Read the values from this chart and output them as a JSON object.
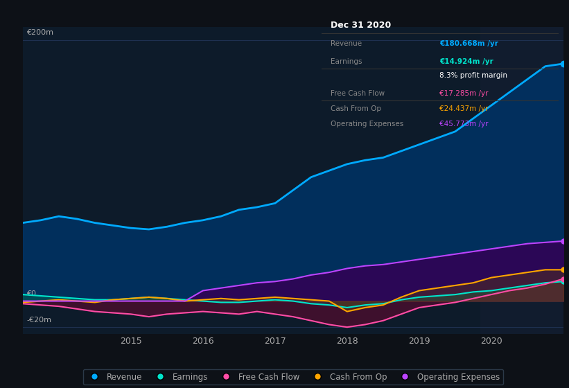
{
  "bg_color": "#0d1117",
  "plot_bg_color": "#0d1b2a",
  "highlight_bg": "#111c2e",
  "grid_color": "#1e3050",
  "text_color": "#aaaaaa",
  "title_color": "#ffffff",
  "ylabel_200": "€200m",
  "ylabel_0": "€0",
  "ylabel_neg20": "-€20m",
  "x_ticks": [
    2015,
    2016,
    2017,
    2018,
    2019,
    2020
  ],
  "legend": [
    {
      "label": "Revenue",
      "color": "#00aaff"
    },
    {
      "label": "Earnings",
      "color": "#00e5cc"
    },
    {
      "label": "Free Cash Flow",
      "color": "#ff4da6"
    },
    {
      "label": "Cash From Op",
      "color": "#ffa500"
    },
    {
      "label": "Operating Expenses",
      "color": "#bb44ff"
    }
  ],
  "info_box": {
    "title": "Dec 31 2020",
    "rows": [
      {
        "label": "Revenue",
        "value": "€180.668m /yr",
        "value_color": "#00aaff"
      },
      {
        "label": "Earnings",
        "value": "€14.924m /yr",
        "value_color": "#00e5cc"
      },
      {
        "label": "",
        "value": "8.3% profit margin",
        "value_color": "#ffffff"
      },
      {
        "label": "Free Cash Flow",
        "value": "€17.285m /yr",
        "value_color": "#ff4da6"
      },
      {
        "label": "Cash From Op",
        "value": "€24.437m /yr",
        "value_color": "#ffa500"
      },
      {
        "label": "Operating Expenses",
        "value": "€45.773m /yr",
        "value_color": "#bb44ff"
      }
    ]
  },
  "revenue": {
    "x": [
      2013.5,
      2013.75,
      2014.0,
      2014.25,
      2014.5,
      2014.75,
      2015.0,
      2015.25,
      2015.5,
      2015.75,
      2016.0,
      2016.25,
      2016.5,
      2016.75,
      2017.0,
      2017.25,
      2017.5,
      2017.75,
      2018.0,
      2018.25,
      2018.5,
      2018.75,
      2019.0,
      2019.25,
      2019.5,
      2019.75,
      2020.0,
      2020.25,
      2020.5,
      2020.75,
      2021.0
    ],
    "y": [
      60,
      62,
      65,
      63,
      60,
      58,
      56,
      55,
      57,
      60,
      62,
      65,
      70,
      72,
      75,
      85,
      95,
      100,
      105,
      108,
      110,
      115,
      120,
      125,
      130,
      140,
      150,
      160,
      170,
      180,
      182
    ],
    "color": "#00aaff",
    "fill_color": "#003366",
    "lw": 2.0
  },
  "earnings": {
    "x": [
      2013.5,
      2013.75,
      2014.0,
      2014.25,
      2014.5,
      2014.75,
      2015.0,
      2015.25,
      2015.5,
      2015.75,
      2016.0,
      2016.25,
      2016.5,
      2016.75,
      2017.0,
      2017.25,
      2017.5,
      2017.75,
      2018.0,
      2018.25,
      2018.5,
      2018.75,
      2019.0,
      2019.25,
      2019.5,
      2019.75,
      2020.0,
      2020.25,
      2020.5,
      2020.75,
      2021.0
    ],
    "y": [
      5,
      4,
      3,
      2,
      1,
      1,
      2,
      3,
      2,
      1,
      0,
      -1,
      -1,
      0,
      1,
      0,
      -2,
      -3,
      -5,
      -3,
      -2,
      1,
      3,
      4,
      5,
      7,
      8,
      10,
      12,
      14,
      15
    ],
    "color": "#00e5cc",
    "lw": 1.5
  },
  "free_cash_flow": {
    "x": [
      2013.5,
      2013.75,
      2014.0,
      2014.25,
      2014.5,
      2014.75,
      2015.0,
      2015.25,
      2015.5,
      2015.75,
      2016.0,
      2016.25,
      2016.5,
      2016.75,
      2017.0,
      2017.25,
      2017.5,
      2017.75,
      2018.0,
      2018.25,
      2018.5,
      2018.75,
      2019.0,
      2019.25,
      2019.5,
      2019.75,
      2020.0,
      2020.25,
      2020.5,
      2020.75,
      2021.0
    ],
    "y": [
      -2,
      -3,
      -4,
      -6,
      -8,
      -9,
      -10,
      -12,
      -10,
      -9,
      -8,
      -9,
      -10,
      -8,
      -10,
      -12,
      -15,
      -18,
      -20,
      -18,
      -15,
      -10,
      -5,
      -3,
      -1,
      2,
      5,
      8,
      10,
      13,
      17
    ],
    "color": "#ff4da6",
    "lw": 1.5
  },
  "cash_from_op": {
    "x": [
      2013.5,
      2013.75,
      2014.0,
      2014.25,
      2014.5,
      2014.75,
      2015.0,
      2015.25,
      2015.5,
      2015.75,
      2016.0,
      2016.25,
      2016.5,
      2016.75,
      2017.0,
      2017.25,
      2017.5,
      2017.75,
      2018.0,
      2018.25,
      2018.5,
      2018.75,
      2019.0,
      2019.25,
      2019.5,
      2019.75,
      2020.0,
      2020.25,
      2020.5,
      2020.75,
      2021.0
    ],
    "y": [
      -1,
      0,
      1,
      0,
      -1,
      1,
      2,
      3,
      2,
      0,
      1,
      2,
      1,
      2,
      3,
      2,
      1,
      0,
      -8,
      -5,
      -3,
      3,
      8,
      10,
      12,
      14,
      18,
      20,
      22,
      24,
      24
    ],
    "color": "#ffa500",
    "lw": 1.5
  },
  "operating_expenses": {
    "x": [
      2013.5,
      2013.75,
      2014.0,
      2014.25,
      2014.5,
      2014.75,
      2015.0,
      2015.25,
      2015.5,
      2015.75,
      2016.0,
      2016.25,
      2016.5,
      2016.75,
      2017.0,
      2017.25,
      2017.5,
      2017.75,
      2018.0,
      2018.25,
      2018.5,
      2018.75,
      2019.0,
      2019.25,
      2019.5,
      2019.75,
      2020.0,
      2020.25,
      2020.5,
      2020.75,
      2021.0
    ],
    "y": [
      0,
      0,
      0,
      0,
      0,
      0,
      0,
      0,
      0,
      0,
      8,
      10,
      12,
      14,
      15,
      17,
      20,
      22,
      25,
      27,
      28,
      30,
      32,
      34,
      36,
      38,
      40,
      42,
      44,
      45,
      46
    ],
    "color": "#bb44ff",
    "fill_color": "#330055",
    "lw": 1.5
  },
  "highlight_x_start": 2019.85,
  "highlight_x_end": 2021.0,
  "ylim": [
    -25,
    210
  ],
  "xlim": [
    2013.5,
    2021.0
  ]
}
